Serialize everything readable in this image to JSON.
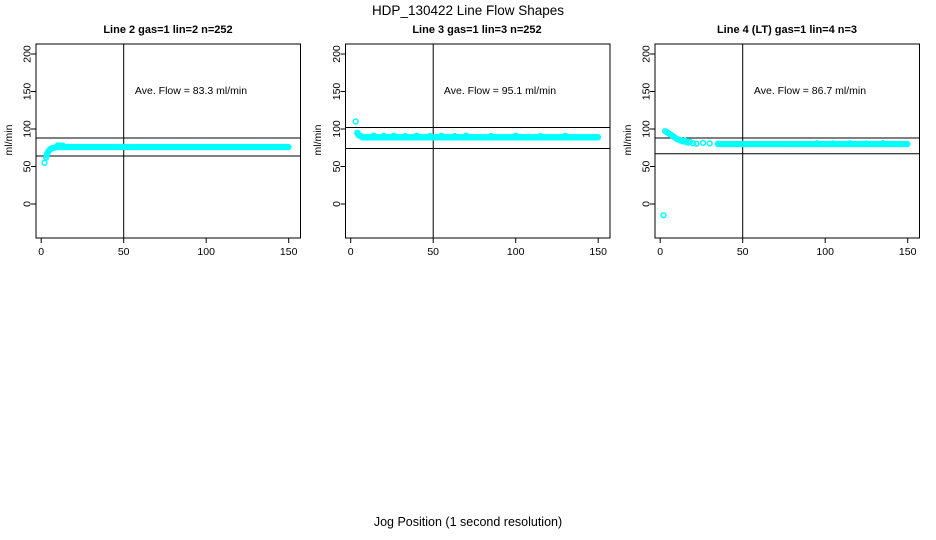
{
  "figure": {
    "title": "HDP_130422  Line Flow Shapes",
    "xlabel": "Jog Position (1 second resolution)",
    "background": "#ffffff"
  },
  "chart_data": {
    "type": "scatter",
    "marker": "open-circle",
    "point_color": "#00ffff",
    "axis_color": "#000000",
    "grid": false,
    "legend": "none",
    "ylabel": "ml/min",
    "xlabel": "Jog Position (1 second resolution)",
    "x_ticks": [
      0,
      50,
      100,
      150
    ],
    "y_ticks": [
      0,
      50,
      100,
      150,
      200
    ],
    "xlim": [
      -3,
      158
    ],
    "ylim": [
      -55,
      215
    ],
    "panels": [
      {
        "title": "Line 2 gas=1 lin=2 n=252",
        "line_name": "Line 2",
        "gas": 1,
        "lin": 2,
        "n": 252,
        "ave_flow": 83.3,
        "ave_flow_label": "Ave. Flow =  83.3  ml/min",
        "vline_x": 50,
        "hlines": [
          88,
          64
        ],
        "outliers": [
          [
            2,
            55
          ]
        ],
        "transient": [
          [
            3,
            62
          ],
          [
            3.3,
            65
          ],
          [
            3.6,
            67
          ],
          [
            4,
            69
          ],
          [
            4.5,
            70.5
          ],
          [
            5,
            72
          ],
          [
            5.5,
            73
          ],
          [
            6,
            73.8
          ],
          [
            7,
            74.6
          ],
          [
            8,
            75.2
          ],
          [
            9,
            75.6
          ],
          [
            10,
            75.9
          ]
        ],
        "plateau": {
          "x_from": 10,
          "x_to": 150,
          "step": 0.6,
          "y": 76
        },
        "noise_points": [
          [
            10,
            78
          ],
          [
            11,
            78
          ],
          [
            12,
            77.6
          ],
          [
            13,
            78
          ]
        ]
      },
      {
        "title": "Line 3 gas=1 lin=3 n=252",
        "line_name": "Line 3",
        "gas": 1,
        "lin": 3,
        "n": 252,
        "ave_flow": 95.1,
        "ave_flow_label": "Ave. Flow =  95.1  ml/min",
        "vline_x": 50,
        "hlines": [
          102,
          74
        ],
        "outliers": [
          [
            3,
            110
          ]
        ],
        "transient": [
          [
            4,
            95
          ],
          [
            4.5,
            93
          ],
          [
            5,
            91.5
          ],
          [
            6,
            90.5
          ],
          [
            7,
            90
          ]
        ],
        "plateau": {
          "x_from": 7,
          "x_to": 150,
          "step": 0.6,
          "y": 89
        },
        "noise_points": [
          [
            14,
            91
          ],
          [
            20,
            90.8
          ],
          [
            26,
            91
          ],
          [
            33,
            90.6
          ],
          [
            40,
            91
          ],
          [
            48,
            90.7
          ],
          [
            55,
            91
          ],
          [
            63,
            90.6
          ],
          [
            70,
            91
          ],
          [
            85,
            90.7
          ],
          [
            100,
            91
          ],
          [
            115,
            90.6
          ],
          [
            130,
            91
          ]
        ]
      },
      {
        "title": "Line 4 (LT) gas=1 lin=4 n=3",
        "line_name": "Line 4 (LT)",
        "gas": 1,
        "lin": 4,
        "n": 3,
        "ave_flow": 86.7,
        "ave_flow_label": "Ave. Flow =  86.7  ml/min",
        "vline_x": 50,
        "hlines": [
          88,
          67
        ],
        "outliers": [
          [
            2,
            -15
          ]
        ],
        "transient": [
          [
            3,
            97
          ],
          [
            4,
            96
          ],
          [
            5,
            94.5
          ],
          [
            6,
            93
          ],
          [
            7,
            91.5
          ],
          [
            8,
            90
          ],
          [
            9,
            88.5
          ],
          [
            10,
            87
          ],
          [
            11,
            86
          ],
          [
            12,
            85
          ],
          [
            13,
            84.2
          ],
          [
            14,
            83.5
          ],
          [
            15,
            84.5
          ],
          [
            16,
            82.5
          ],
          [
            17,
            82
          ],
          [
            18,
            83
          ],
          [
            20,
            81
          ],
          [
            22,
            80.5
          ],
          [
            26,
            81.5
          ],
          [
            30,
            80.8
          ],
          [
            35,
            80.3
          ]
        ],
        "plateau": {
          "x_from": 35,
          "x_to": 150,
          "step": 0.7,
          "y": 80
        },
        "noise_points": [
          [
            95,
            81
          ],
          [
            105,
            80.7
          ],
          [
            115,
            81
          ],
          [
            125,
            80.6
          ],
          [
            135,
            81
          ]
        ]
      }
    ]
  }
}
